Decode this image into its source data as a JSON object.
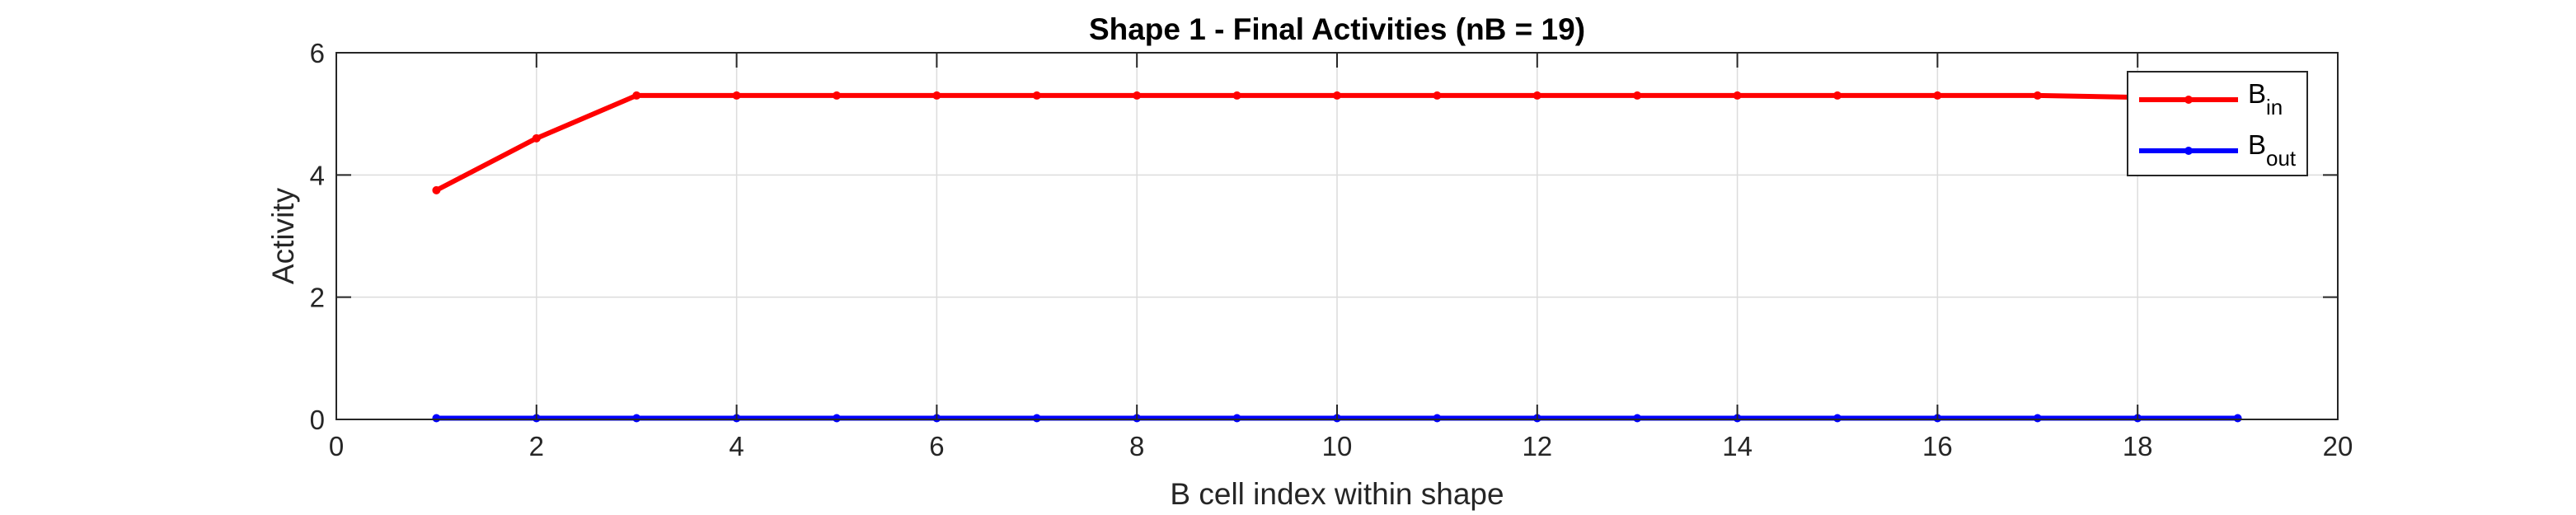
{
  "chart_data": {
    "type": "line",
    "title": "Shape 1 - Final Activities (nB = 19)",
    "xlabel": "B cell index within shape",
    "ylabel": "Activity",
    "xlim": [
      0,
      20
    ],
    "ylim": [
      0,
      6
    ],
    "xticks": [
      0,
      2,
      4,
      6,
      8,
      10,
      12,
      14,
      16,
      18,
      20
    ],
    "yticks": [
      0,
      2,
      4,
      6
    ],
    "grid": true,
    "legend_position": "top-right",
    "x": [
      1,
      2,
      3,
      4,
      5,
      6,
      7,
      8,
      9,
      10,
      11,
      12,
      13,
      14,
      15,
      16,
      17,
      18,
      19
    ],
    "series": [
      {
        "name": "B",
        "subscript": "in",
        "color": "#ff0000",
        "values": [
          3.75,
          4.6,
          5.3,
          5.3,
          5.3,
          5.3,
          5.3,
          5.3,
          5.3,
          5.3,
          5.3,
          5.3,
          5.3,
          5.3,
          5.3,
          5.3,
          5.3,
          5.27,
          5.27
        ]
      },
      {
        "name": "B",
        "subscript": "out",
        "color": "#0000ff",
        "values": [
          0.02,
          0.02,
          0.02,
          0.02,
          0.02,
          0.02,
          0.02,
          0.02,
          0.02,
          0.02,
          0.02,
          0.02,
          0.02,
          0.02,
          0.02,
          0.02,
          0.02,
          0.02,
          0.02
        ]
      }
    ]
  }
}
